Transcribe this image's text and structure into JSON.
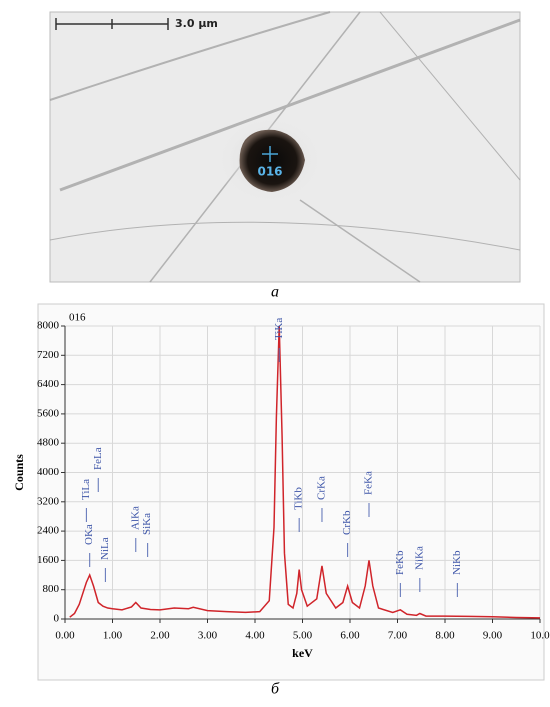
{
  "micrograph": {
    "scale_bar": "3.0 µm",
    "point_label": "016",
    "caption": "a"
  },
  "chart_data": {
    "type": "line",
    "label": "016",
    "xlabel": "keV",
    "ylabel": "Counts",
    "caption": "б",
    "x": [
      0.1,
      0.2,
      0.3,
      0.4,
      0.45,
      0.52,
      0.6,
      0.7,
      0.8,
      0.9,
      1.0,
      1.2,
      1.4,
      1.49,
      1.6,
      1.8,
      2.0,
      2.3,
      2.6,
      2.7,
      3.0,
      3.4,
      3.8,
      4.1,
      4.3,
      4.4,
      4.45,
      4.51,
      4.57,
      4.62,
      4.7,
      4.8,
      4.88,
      4.93,
      4.98,
      5.1,
      5.3,
      5.41,
      5.5,
      5.7,
      5.85,
      5.95,
      6.05,
      6.2,
      6.32,
      6.4,
      6.48,
      6.6,
      6.9,
      7.06,
      7.2,
      7.4,
      7.47,
      7.6,
      8.0,
      8.5,
      9.0,
      9.5,
      10.0
    ],
    "series": [
      {
        "color": "#d0242a",
        "values": [
          50,
          150,
          400,
          800,
          1000,
          1200,
          900,
          450,
          350,
          300,
          280,
          250,
          330,
          450,
          300,
          260,
          250,
          300,
          280,
          320,
          230,
          200,
          180,
          200,
          500,
          2500,
          5500,
          8000,
          5000,
          1800,
          400,
          300,
          700,
          1350,
          800,
          350,
          550,
          1450,
          700,
          300,
          450,
          900,
          450,
          300,
          900,
          1600,
          900,
          300,
          180,
          250,
          130,
          100,
          150,
          80,
          80,
          70,
          60,
          40,
          30
        ]
      }
    ],
    "peaks": [
      {
        "label": "TiLa",
        "x": 0.45
      },
      {
        "label": "OKa",
        "x": 0.52
      },
      {
        "label": "FeLa",
        "x": 0.7
      },
      {
        "label": "NiLa",
        "x": 0.85
      },
      {
        "label": "AlKa",
        "x": 1.49
      },
      {
        "label": "SiKa",
        "x": 1.74
      },
      {
        "label": "TiKa",
        "x": 4.51
      },
      {
        "label": "TiKb",
        "x": 4.93
      },
      {
        "label": "CrKa",
        "x": 5.41
      },
      {
        "label": "CrKb",
        "x": 5.95
      },
      {
        "label": "FeKa",
        "x": 6.4
      },
      {
        "label": "FeKb",
        "x": 7.06
      },
      {
        "label": "NiKa",
        "x": 7.47
      },
      {
        "label": "NiKb",
        "x": 8.26
      }
    ],
    "xlim": [
      0,
      10
    ],
    "xticks": [
      {
        "value": 0,
        "label": "0.00"
      },
      {
        "value": 1,
        "label": "1.00"
      },
      {
        "value": 2,
        "label": "2.00"
      },
      {
        "value": 3,
        "label": "3.00"
      },
      {
        "value": 4,
        "label": "4.00"
      },
      {
        "value": 5,
        "label": "5.00"
      },
      {
        "value": 6,
        "label": "6.00"
      },
      {
        "value": 7,
        "label": "7.00"
      },
      {
        "value": 8,
        "label": "8.00"
      },
      {
        "value": 9,
        "label": "9.00"
      },
      {
        "value": 10,
        "label": "10.0"
      }
    ],
    "ylim": [
      0,
      8000
    ],
    "yticks": [
      0,
      800,
      1600,
      2400,
      3200,
      4000,
      4800,
      5600,
      6400,
      7200,
      8000
    ],
    "grid": true
  }
}
